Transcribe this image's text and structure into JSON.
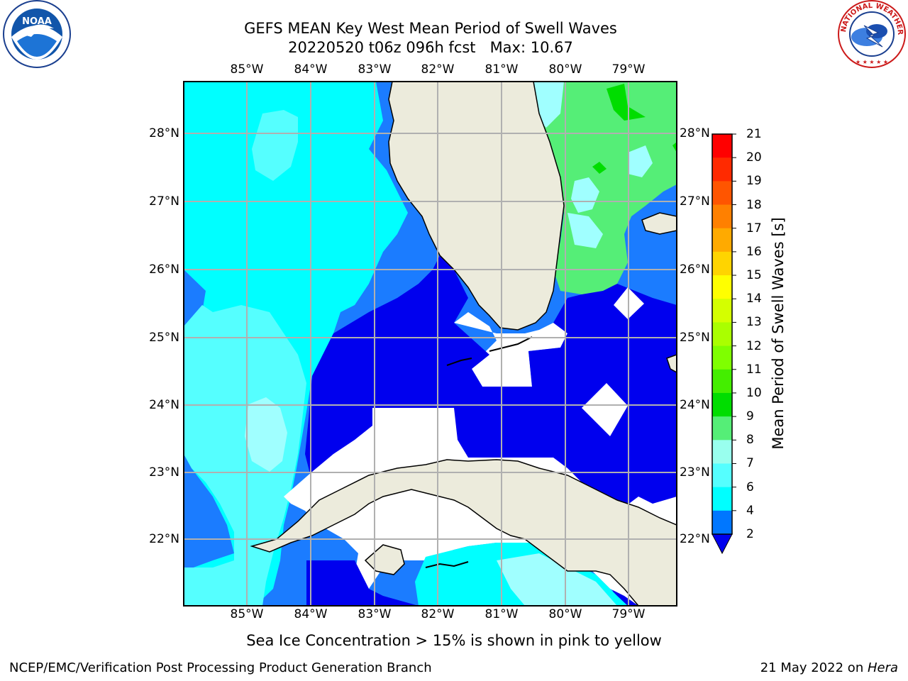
{
  "title_line1": "GEFS MEAN Key West Mean Period of Swell Waves",
  "title_line2": "20220520 t06z 096h fcst   Max: 10.67",
  "lon_labels": [
    "85°W",
    "84°W",
    "83°W",
    "82°W",
    "81°W",
    "80°W",
    "79°W"
  ],
  "lat_labels": [
    "28°N",
    "27°N",
    "26°N",
    "25°N",
    "24°N",
    "23°N",
    "22°N"
  ],
  "colorbar": {
    "label": "Mean Period of Swell Waves [s]",
    "ticks": [
      "21",
      "20",
      "19",
      "18",
      "17",
      "16",
      "15",
      "14",
      "13",
      "12",
      "11",
      "10",
      "9",
      "8",
      "7",
      "6",
      "4",
      "2"
    ],
    "colors": [
      "#ff0000",
      "#ff2a00",
      "#ff5500",
      "#ff8000",
      "#ffaa00",
      "#ffd400",
      "#ffff00",
      "#d4ff00",
      "#aaff00",
      "#7fff00",
      "#44ee00",
      "#00dd00",
      "#55ee77",
      "#99ffee",
      "#55ffff",
      "#00ffff",
      "#0077ff",
      "#0000ee"
    ],
    "extend_color": "#0000ee"
  },
  "colors": {
    "land": "#ecebdc",
    "ocean_deep": "#0000ee",
    "ocean_blue": "#1b7cff",
    "ocean_cyan": "#00ffff",
    "ocean_lightcyan": "#55ffff",
    "ocean_pale": "#a0ffff",
    "ocean_green": "#55ee77",
    "ocean_bright_green": "#00dd00",
    "grid": "#b0b0b0"
  },
  "ice_note": "Sea Ice Concentration > 15% is shown in pink to yellow",
  "footer_left": "NCEP/EMC/Verification Post Processing Product Generation Branch",
  "footer_right_text": "21 May 2022 on ",
  "footer_right_machine": "Hera",
  "logos": {
    "noaa_left": "NOAA",
    "nws_right": "NATIONAL WEATHER SERVICE"
  }
}
